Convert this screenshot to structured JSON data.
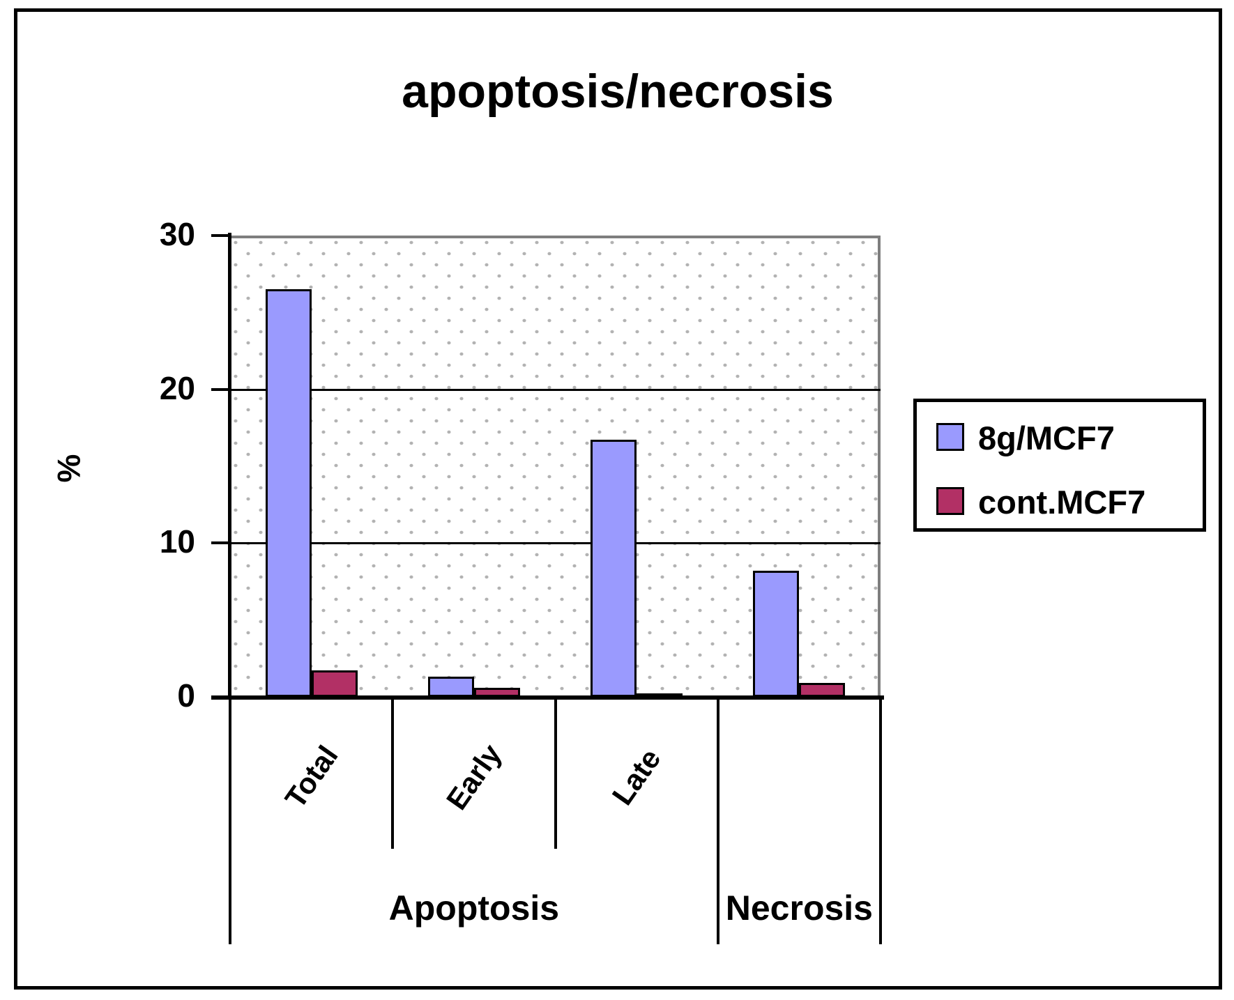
{
  "title": "apoptosis/necrosis",
  "chart_data": {
    "type": "bar",
    "title": "apoptosis/necrosis",
    "xlabel": "",
    "ylabel": "%",
    "ylim": [
      0,
      30
    ],
    "yticks": [
      0,
      10,
      20,
      30
    ],
    "grid": "horizontal",
    "legend_position": "right",
    "plot_pattern": "gray-dots",
    "categories": [
      "Total",
      "Early",
      "Late",
      "Necrosis"
    ],
    "category_axis_labels": [
      "Total",
      "Early",
      "Late",
      ""
    ],
    "groups": [
      {
        "label": "Apoptosis",
        "from": 0,
        "to": 3
      },
      {
        "label": "Necrosis",
        "from": 3,
        "to": 4
      }
    ],
    "series": [
      {
        "name": "8g/MCF7",
        "color": "#9a9afe",
        "values": [
          26.5,
          1.3,
          16.7,
          8.2
        ]
      },
      {
        "name": "cont.MCF7",
        "color": "#b23065",
        "values": [
          1.7,
          0.6,
          0.2,
          0.9
        ]
      }
    ],
    "colors": {
      "series_1": "#9a9afe",
      "series_2": "#b23065",
      "axis": "#000000",
      "plot_border_gray": "#7e7e7e",
      "dot_gray": "#b2b2b2",
      "text": "#000000",
      "background": "#ffffff"
    }
  }
}
